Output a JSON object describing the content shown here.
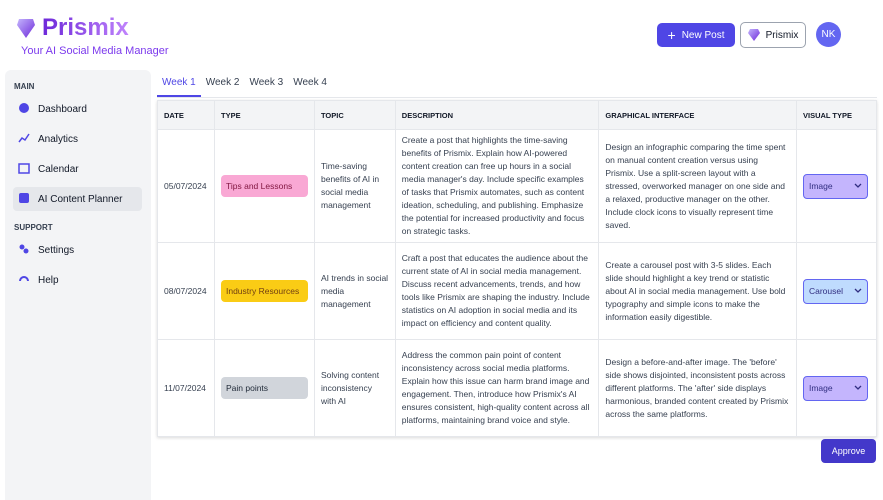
{
  "header": {
    "title": "Prismix",
    "subtitle": "Your AI Social Media Manager",
    "new_post": "New Post",
    "workspace": "Prismix",
    "avatar": "NK"
  },
  "sidebar": {
    "sections": [
      {
        "label": "MAIN",
        "items": [
          "Dashboard",
          "Analytics",
          "Calendar",
          "AI Content Planner"
        ]
      },
      {
        "label": "SUPPORT",
        "items": [
          "Settings",
          "Help"
        ]
      }
    ]
  },
  "tabs": [
    "Week 1",
    "Week 2",
    "Week 3",
    "Week 4"
  ],
  "table": {
    "columns": [
      "DATE",
      "TYPE",
      "TOPIC",
      "DESCRIPTION",
      "GRAPHICAL INTERFACE",
      "VISUAL TYPE"
    ],
    "rows": [
      [
        "05/07/2024",
        "Tips and Lessons",
        "Time-saving benefits of AI in social media management",
        "Create a post that highlights the time-saving benefits of Prismix. Explain how AI-powered content creation can free up hours in a social media manager's day. Include specific examples of tasks that Prismix automates, such as content ideation, scheduling, and publishing. Emphasize the potential for increased productivity and focus on strategic tasks.",
        "Design an infographic comparing the time spent on manual content creation versus using Prismix. Use a split-screen layout with a stressed, overworked manager on one side and a relaxed, productive manager on the other. Include clock icons to visually represent time saved.",
        "Image"
      ],
      [
        "08/07/2024",
        "Industry Resources",
        "AI trends in social media management",
        "Craft a post that educates the audience about the current state of AI in social media management. Discuss recent advancements, trends, and how tools like Prismix are shaping the industry. Include statistics on AI adoption in social media and its impact on efficiency and content quality.",
        "Create a carousel post with 3-5 slides. Each slide should highlight a key trend or statistic about AI in social media management. Use bold typography and simple icons to make the information easily digestible.",
        "Carousel"
      ],
      [
        "11/07/2024",
        "Pain points",
        "Solving content inconsistency with AI",
        "Address the common pain point of content inconsistency across social media platforms. Explain how this issue can harm brand image and engagement. Then, introduce how Prismix's AI ensures consistent, high-quality content across all platforms, maintaining brand voice and style.",
        "Design a before-and-after image. The 'before' side shows disjointed, inconsistent posts across different platforms. The 'after' side displays harmonious, branded content created by Prismix across the same platforms.",
        "Image"
      ]
    ]
  },
  "approve": "Approve"
}
